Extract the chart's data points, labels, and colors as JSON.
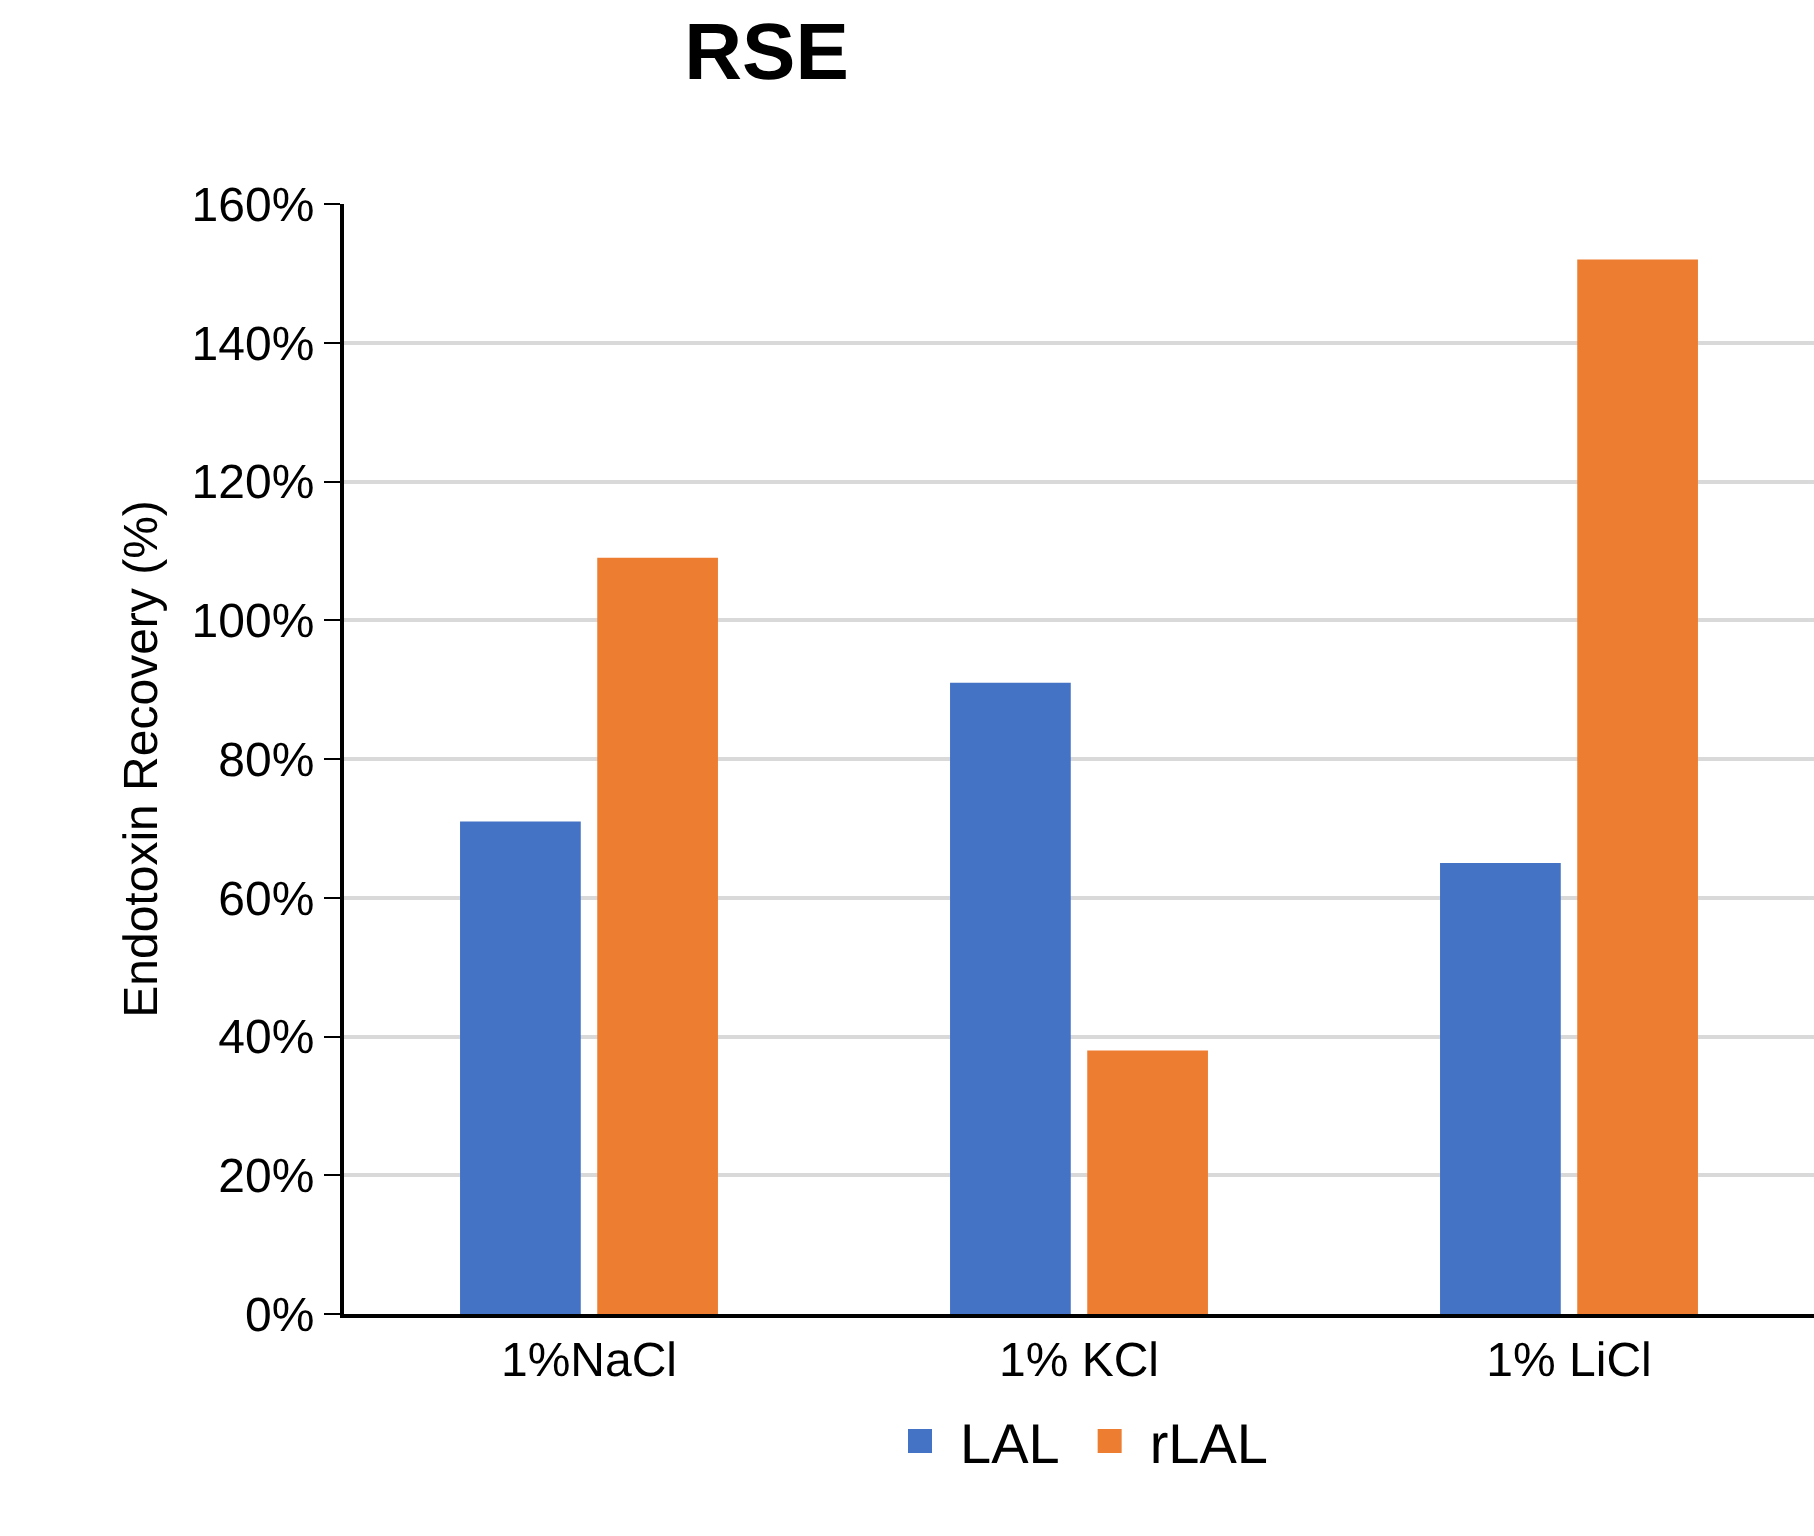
{
  "chart_data": {
    "type": "bar",
    "title": "RSE",
    "ylabel": "Endotoxin Recovery (%)",
    "categories": [
      "1%NaCl",
      "1% KCl",
      "1% LiCl"
    ],
    "series": [
      {
        "name": "LAL",
        "color": "#4472c4",
        "values": [
          71,
          91,
          65
        ]
      },
      {
        "name": "rLAL",
        "color": "#ed7d31",
        "values": [
          109,
          38,
          152
        ]
      }
    ],
    "ylim": [
      0,
      160
    ],
    "yticks": [
      {
        "value": 0,
        "label": "0%"
      },
      {
        "value": 20,
        "label": "20%"
      },
      {
        "value": 40,
        "label": "40%"
      },
      {
        "value": 60,
        "label": "60%"
      },
      {
        "value": 80,
        "label": "80%"
      },
      {
        "value": 100,
        "label": "100%"
      },
      {
        "value": 120,
        "label": "120%"
      },
      {
        "value": 140,
        "label": "140%"
      },
      {
        "value": 160,
        "label": "160%"
      }
    ],
    "grid": "y",
    "legend": "bottom"
  }
}
